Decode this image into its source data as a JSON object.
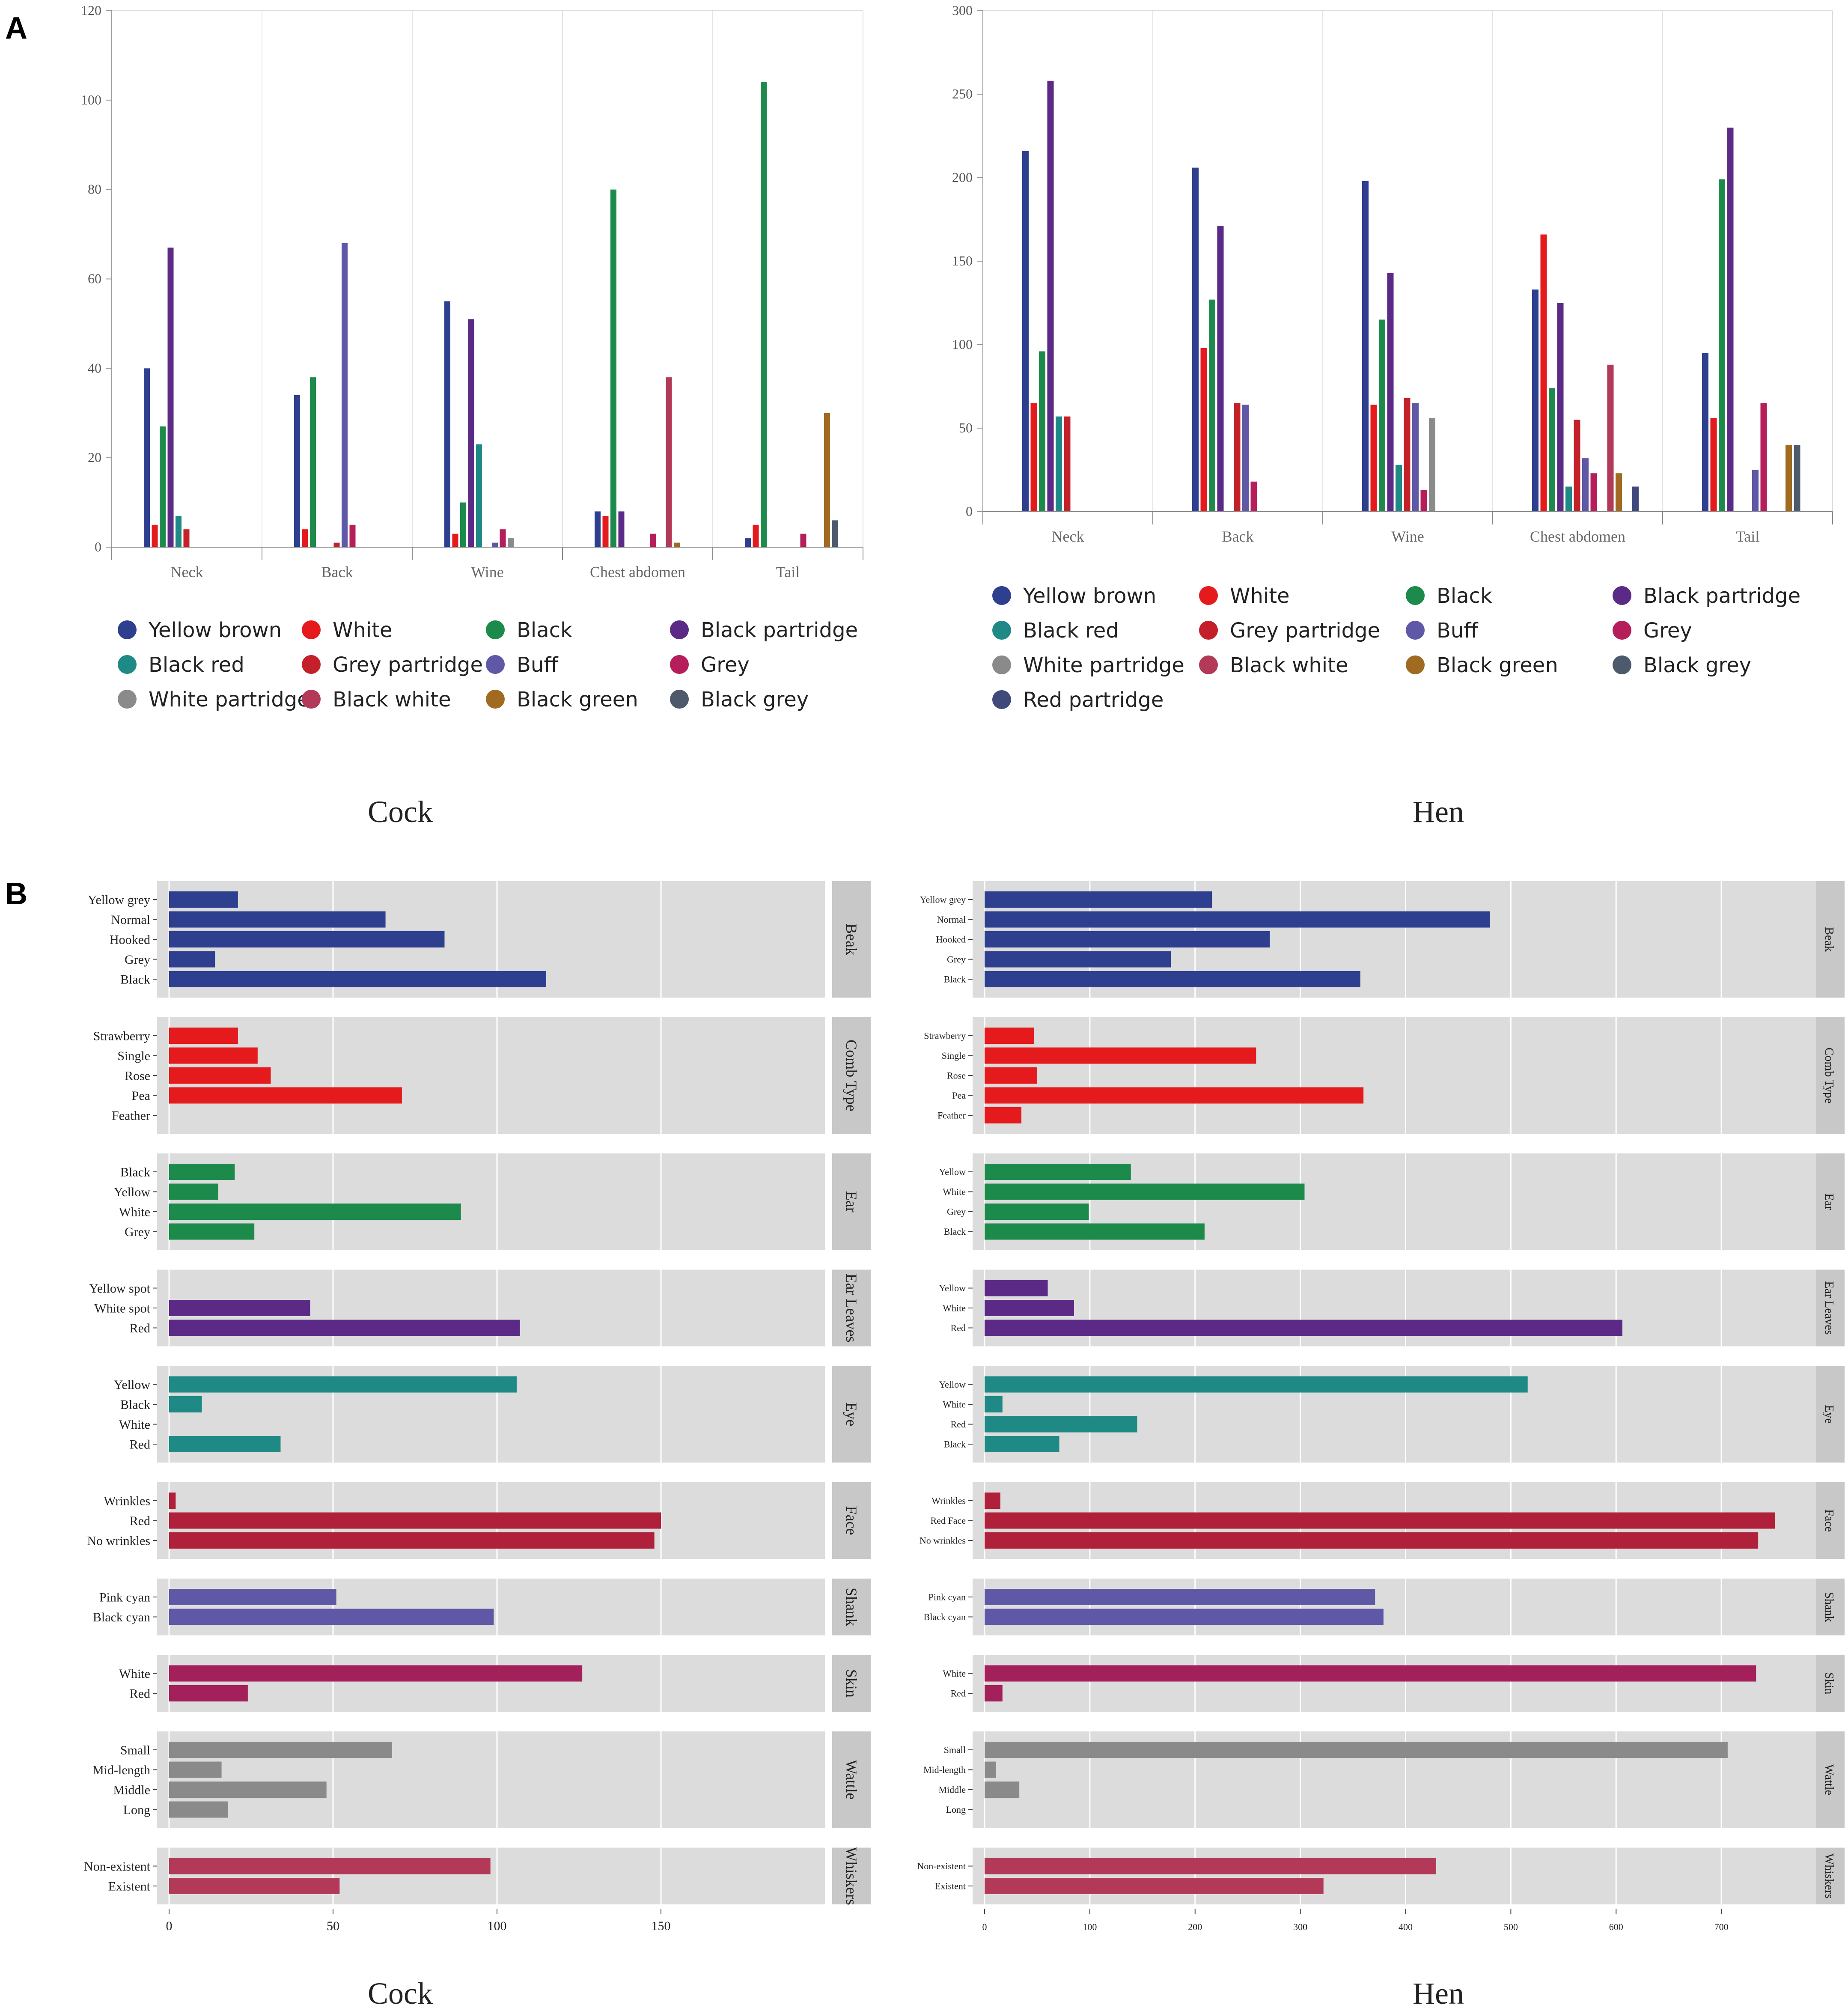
{
  "figure": {
    "panel_a_label": "A",
    "panel_b_label": "B",
    "cock_caption": "Cock",
    "hen_caption": "Hen"
  },
  "colors": {
    "Yellow brown": "#2e3f8f",
    "White": "#e41a1c",
    "Black": "#1b8a4a",
    "Black partridge": "#5b2a86",
    "Black red": "#1f8a85",
    "Grey partridge": "#c4202a",
    "Buff": "#5e58a6",
    "Grey": "#b51e5a",
    "White partridge": "#8a8a8a",
    "Black white": "#b23a58",
    "Black green": "#a06a20",
    "Black grey": "#4c5a6b",
    "Red partridge": "#3f4a7a"
  },
  "chart_data": [
    {
      "id": "a-cock",
      "type": "bar",
      "title": "Cock",
      "categories": [
        "Neck",
        "Back",
        "Wine",
        "Chest abdomen",
        "Tail"
      ],
      "ylim": [
        0,
        120
      ],
      "yticks": [
        "0",
        "20",
        "40",
        "60",
        "80",
        "100",
        "120"
      ],
      "legend": [
        "Yellow brown",
        "White",
        "Black",
        "Black partridge",
        "Black red",
        "Grey partridge",
        "Buff",
        "Grey",
        "White partridge",
        "Black white",
        "Black green",
        "Black grey"
      ],
      "series": [
        {
          "name": "Yellow brown",
          "values": [
            40,
            34,
            55,
            8,
            2
          ]
        },
        {
          "name": "White",
          "values": [
            5,
            4,
            3,
            7,
            5
          ]
        },
        {
          "name": "Black",
          "values": [
            27,
            38,
            10,
            80,
            104
          ]
        },
        {
          "name": "Black partridge",
          "values": [
            67,
            0,
            51,
            8,
            0
          ]
        },
        {
          "name": "Black red",
          "values": [
            7,
            0,
            23,
            0,
            0
          ]
        },
        {
          "name": "Grey partridge",
          "values": [
            4,
            1,
            0,
            0,
            0
          ]
        },
        {
          "name": "Buff",
          "values": [
            0,
            68,
            1,
            0,
            0
          ]
        },
        {
          "name": "Grey",
          "values": [
            0,
            5,
            4,
            3,
            3
          ]
        },
        {
          "name": "White partridge",
          "values": [
            0,
            0,
            2,
            0,
            0
          ]
        },
        {
          "name": "Black white",
          "values": [
            0,
            0,
            0,
            38,
            0
          ]
        },
        {
          "name": "Black green",
          "values": [
            0,
            0,
            0,
            1,
            30
          ]
        },
        {
          "name": "Black grey",
          "values": [
            0,
            0,
            0,
            0,
            6
          ]
        }
      ]
    },
    {
      "id": "a-hen",
      "type": "bar",
      "title": "Hen",
      "categories": [
        "Neck",
        "Back",
        "Wine",
        "Chest abdomen",
        "Tail"
      ],
      "ylim": [
        0,
        300
      ],
      "yticks": [
        "0",
        "50",
        "100",
        "150",
        "200",
        "250",
        "300"
      ],
      "legend": [
        "Yellow brown",
        "White",
        "Black",
        "Black partridge",
        "Black red",
        "Grey partridge",
        "Buff",
        "Grey",
        "White partridge",
        "Black white",
        "Black green",
        "Black grey",
        "Red partridge"
      ],
      "series": [
        {
          "name": "Yellow brown",
          "values": [
            216,
            206,
            198,
            133,
            95
          ]
        },
        {
          "name": "White",
          "values": [
            65,
            98,
            64,
            166,
            56
          ]
        },
        {
          "name": "Black",
          "values": [
            96,
            127,
            115,
            74,
            199
          ]
        },
        {
          "name": "Black partridge",
          "values": [
            258,
            171,
            143,
            125,
            230
          ]
        },
        {
          "name": "Black red",
          "values": [
            57,
            0,
            28,
            15,
            0
          ]
        },
        {
          "name": "Grey partridge",
          "values": [
            57,
            65,
            68,
            55,
            0
          ]
        },
        {
          "name": "Buff",
          "values": [
            0,
            64,
            65,
            32,
            25
          ]
        },
        {
          "name": "Grey",
          "values": [
            0,
            18,
            13,
            23,
            65
          ]
        },
        {
          "name": "White partridge",
          "values": [
            0,
            0,
            56,
            0,
            0
          ]
        },
        {
          "name": "Black white",
          "values": [
            0,
            0,
            0,
            88,
            0
          ]
        },
        {
          "name": "Black green",
          "values": [
            0,
            0,
            0,
            23,
            40
          ]
        },
        {
          "name": "Black grey",
          "values": [
            0,
            0,
            0,
            0,
            40
          ]
        },
        {
          "name": "Red partridge",
          "values": [
            0,
            0,
            0,
            15,
            0
          ]
        }
      ]
    },
    {
      "id": "b-cock",
      "type": "bar",
      "orientation": "horizontal",
      "title": "Cock",
      "xlim": [
        0,
        200
      ],
      "xticks": [
        "0",
        "50",
        "100",
        "150"
      ],
      "facets": [
        {
          "name": "Beak",
          "color": "#2e3f8f",
          "categories": [
            "Yellow grey",
            "Normal",
            "Hooked",
            "Grey",
            "Black"
          ],
          "values": [
            21,
            66,
            84,
            14,
            115
          ]
        },
        {
          "name": "Comb Type",
          "color": "#e41a1c",
          "categories": [
            "Strawberry",
            "Single",
            "Rose",
            "Pea",
            "Feather"
          ],
          "values": [
            21,
            27,
            31,
            71,
            0
          ]
        },
        {
          "name": "Ear",
          "color": "#1b8a4a",
          "categories": [
            "Black",
            "Yellow",
            "White",
            "Grey"
          ],
          "values": [
            20,
            15,
            89,
            26
          ]
        },
        {
          "name": "Ear Leaves",
          "color": "#5b2a86",
          "categories": [
            "Yellow spot",
            "White spot",
            "Red"
          ],
          "values": [
            0,
            43,
            107
          ]
        },
        {
          "name": "Eye",
          "color": "#1f8a85",
          "categories": [
            "Yellow",
            "Black",
            "White",
            "Red"
          ],
          "values": [
            106,
            10,
            0,
            34
          ]
        },
        {
          "name": "Face",
          "color": "#b0203a",
          "categories": [
            "Wrinkles",
            "Red",
            "No wrinkles"
          ],
          "values": [
            2,
            150,
            148
          ]
        },
        {
          "name": "Shank",
          "color": "#5e58a6",
          "categories": [
            "Pink cyan",
            "Black cyan"
          ],
          "values": [
            51,
            99
          ]
        },
        {
          "name": "Skin",
          "color": "#a3205a",
          "categories": [
            "White",
            "Red"
          ],
          "values": [
            126,
            24
          ]
        },
        {
          "name": "Wattle",
          "color": "#8a8a8a",
          "categories": [
            "Small",
            "Mid-length",
            "Middle",
            "Long"
          ],
          "values": [
            68,
            16,
            48,
            18
          ]
        },
        {
          "name": "Whiskers",
          "color": "#b23a58",
          "categories": [
            "Non-existent",
            "Existent"
          ],
          "values": [
            98,
            52
          ]
        }
      ]
    },
    {
      "id": "b-hen",
      "type": "bar",
      "orientation": "horizontal",
      "title": "Hen",
      "xlim": [
        0,
        800
      ],
      "xticks": [
        "0",
        "100",
        "200",
        "300",
        "400",
        "500",
        "600",
        "700"
      ],
      "facets": [
        {
          "name": "Beak",
          "color": "#2e3f8f",
          "categories": [
            "Yellow grey",
            "Normal",
            "Hooked",
            "Grey",
            "Black"
          ],
          "values": [
            216,
            480,
            271,
            177,
            357
          ]
        },
        {
          "name": "Comb Type",
          "color": "#e41a1c",
          "categories": [
            "Strawberry",
            "Single",
            "Rose",
            "Pea",
            "Feather"
          ],
          "values": [
            47,
            258,
            50,
            360,
            35
          ]
        },
        {
          "name": "Ear",
          "color": "#1b8a4a",
          "categories": [
            "Yellow",
            "White",
            "Grey",
            "Black"
          ],
          "values": [
            139,
            304,
            99,
            209
          ]
        },
        {
          "name": "Ear Leaves",
          "color": "#5b2a86",
          "categories": [
            "Yellow",
            "White",
            "Red"
          ],
          "values": [
            60,
            85,
            606
          ]
        },
        {
          "name": "Eye",
          "color": "#1f8a85",
          "categories": [
            "Yellow",
            "White",
            "Red",
            "Black"
          ],
          "values": [
            516,
            17,
            145,
            71
          ]
        },
        {
          "name": "Face",
          "color": "#b0203a",
          "categories": [
            "Wrinkles",
            "Red Face",
            "No wrinkles"
          ],
          "values": [
            15,
            751,
            735
          ]
        },
        {
          "name": "Shank",
          "color": "#5e58a6",
          "categories": [
            "Pink cyan",
            "Black cyan"
          ],
          "values": [
            371,
            379
          ]
        },
        {
          "name": "Skin",
          "color": "#a3205a",
          "categories": [
            "White",
            "Red"
          ],
          "values": [
            733,
            17
          ]
        },
        {
          "name": "Wattle",
          "color": "#8a8a8a",
          "categories": [
            "Small",
            "Mid-length",
            "Middle",
            "Long"
          ],
          "values": [
            706,
            11,
            33,
            0
          ]
        },
        {
          "name": "Whiskers",
          "color": "#b23a58",
          "categories": [
            "Non-existent",
            "Existent"
          ],
          "values": [
            429,
            322
          ]
        }
      ]
    }
  ]
}
